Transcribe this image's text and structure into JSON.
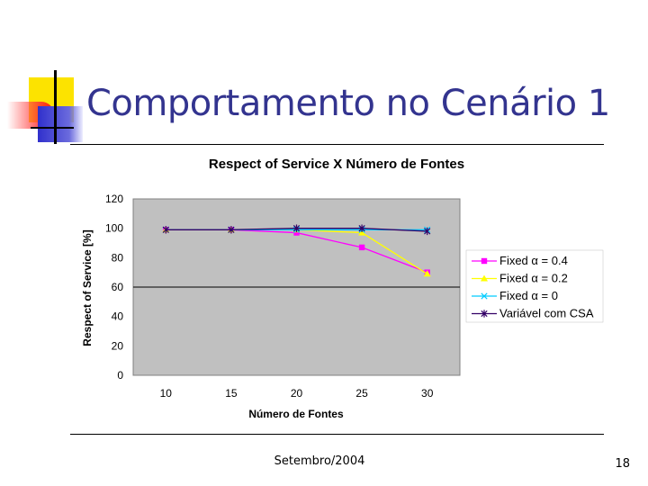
{
  "slide": {
    "title": "Comportamento no Cenário 1",
    "footer": "Setembro/2004",
    "page": "18"
  },
  "colors": {
    "title": "#33348f",
    "deco_yellow": "#fce300",
    "deco_blue": "#3333cc",
    "deco_red": "#ff0000",
    "plot_bg": "#c0c0c0"
  },
  "chart_data": {
    "type": "line",
    "title": "Respect of Service X Número de Fontes",
    "xlabel": "Número de Fontes",
    "ylabel": "Respect of Service [%]",
    "x": [
      10,
      15,
      20,
      25,
      30
    ],
    "ylim": [
      0,
      120
    ],
    "yticks": [
      0,
      20,
      40,
      60,
      80,
      100,
      120
    ],
    "grid": "horizontal at 60",
    "legend": "right",
    "series": [
      {
        "name": "Fixed α = 0.4",
        "values": [
          99,
          99,
          97,
          87,
          70
        ],
        "color": "#ff00ff",
        "marker": "square"
      },
      {
        "name": "Fixed α = 0.2",
        "values": [
          99,
          99,
          99,
          97,
          69
        ],
        "color": "#ffff00",
        "marker": "triangle"
      },
      {
        "name": "Fixed α = 0",
        "values": [
          99,
          99,
          99,
          99,
          99
        ],
        "color": "#00ccff",
        "marker": "x"
      },
      {
        "name": "Variável com CSA",
        "values": [
          99,
          99,
          100,
          100,
          98
        ],
        "color": "#330066",
        "marker": "star"
      }
    ]
  }
}
